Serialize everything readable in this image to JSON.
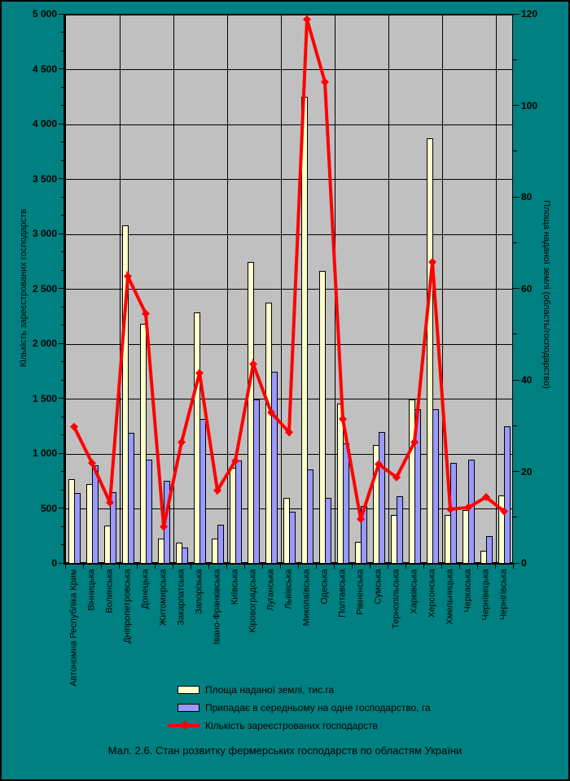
{
  "colors": {
    "page_bg": "#008080",
    "plot_bg": "#C0C0C0",
    "grid": "#000000",
    "area_bar": "#FFFFCC",
    "avg_bar": "#9999FF",
    "line": "#FF0000"
  },
  "chart_data": {
    "type": "bar",
    "subtype": "bar+line combo",
    "title": "Мал. 2.6. Стан розвитку фермерських господарств по областям України",
    "categories": [
      "Автономна Республіка Крим",
      "Вінницька",
      "Волинська",
      "Дніпропетровська",
      "Донецька",
      "Житомирська",
      "Закарпатська",
      "Запорізька",
      "Івано-Франківська",
      "Київська",
      "Кіровоградська",
      "Луганська",
      "Львівська",
      "Миколаївська",
      "Одеська",
      "Полтавська",
      "Рівненська",
      "Сумська",
      "Тернопільська",
      "Харківська",
      "Херсонська",
      "Хмельницька",
      "Черкаська",
      "Чернівецька",
      "Чернігівська"
    ],
    "series": [
      {
        "name": "Площа наданої землі, тис.га",
        "type": "bar",
        "axis": "right",
        "color": "#FFFFCC",
        "values": [
          18.5,
          17.5,
          8.3,
          74,
          52.5,
          5.6,
          4.6,
          55,
          5.5,
          21,
          66,
          57,
          14.4,
          102,
          64,
          35,
          4.8,
          26,
          10.6,
          36,
          93,
          10.6,
          11.8,
          2.9,
          15
        ]
      },
      {
        "name": "Припадає в середньому на одне господарство, га",
        "type": "bar",
        "axis": "right",
        "color": "#9999FF",
        "values": [
          15.4,
          21.5,
          15.6,
          28.6,
          22.8,
          18.1,
          3.6,
          31.7,
          8.6,
          22.6,
          35.9,
          42,
          11.4,
          20.6,
          14.4,
          26.4,
          12.7,
          28.8,
          14.8,
          33.8,
          33.8,
          22,
          22.8,
          6,
          30
        ]
      },
      {
        "name": "Кількість зареєстрованих господарств",
        "type": "line",
        "axis": "left",
        "color": "#FF0000",
        "values": [
          1240,
          910,
          550,
          2610,
          2270,
          330,
          1100,
          1730,
          660,
          930,
          1810,
          1370,
          1190,
          4950,
          4380,
          1310,
          400,
          900,
          780,
          1100,
          2740,
          490,
          505,
          600,
          470
        ]
      }
    ],
    "left_axis": {
      "title": "Кількість зареєстрованих господарств",
      "min": 0,
      "max": 5000,
      "major": 500,
      "tick_labels": [
        "0",
        "500",
        "1 000",
        "1 500",
        "2 000",
        "2 500",
        "3 000",
        "3 500",
        "4 000",
        "4 500",
        "5 000"
      ]
    },
    "right_axis": {
      "title": "Площа наданої землі (область/господарство)",
      "min": 0,
      "max": 120,
      "major": 20,
      "tick_labels": [
        "0",
        "20",
        "40",
        "60",
        "80",
        "100",
        "120"
      ]
    },
    "grid": "horizontal major + vertical every 3 categories",
    "legend_position": "bottom-left"
  }
}
